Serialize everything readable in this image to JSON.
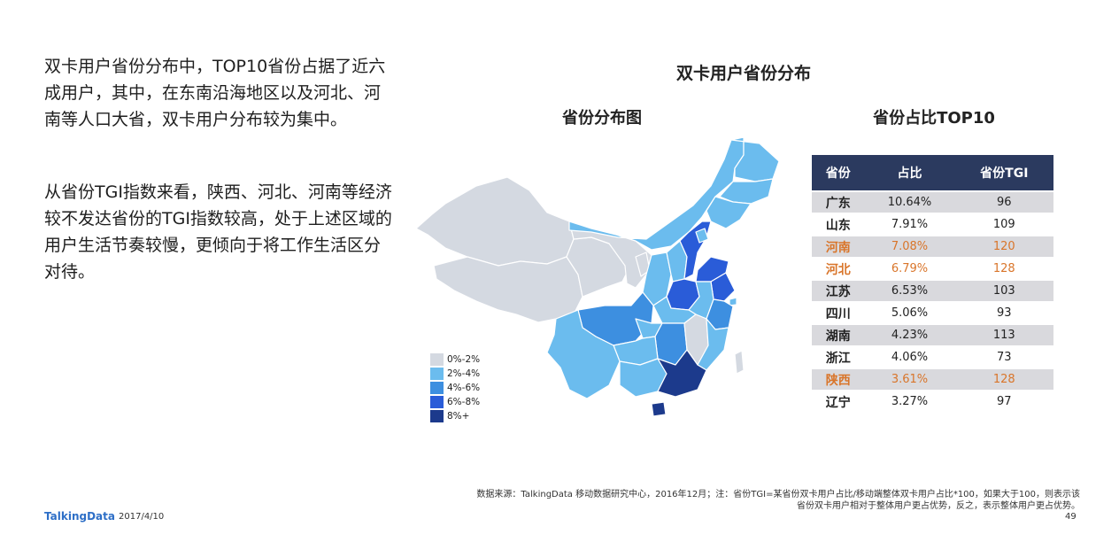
{
  "left_text": {
    "p1": "双卡用户省份分布中，TOP10省份占据了近六成用户，其中，在东南沿海地区以及河北、河南等人口大省，双卡用户分布较为集中。",
    "p2": "从省份TGI指数来看，陕西、河北、河南等经济较不发达省份的TGI指数较高，处于上述区域的用户生活节奏较慢，更倾向于将工作生活区分对待。"
  },
  "titles": {
    "main": "双卡用户省份分布",
    "map": "省份分布图",
    "top": "省份占比TOP10"
  },
  "legend": [
    {
      "label": "0%-2%",
      "color": "#d4d9e1"
    },
    {
      "label": "2%-4%",
      "color": "#6bbcee"
    },
    {
      "label": "4%-6%",
      "color": "#3d8fe0"
    },
    {
      "label": "6%-8%",
      "color": "#2a5cd8"
    },
    {
      "label": "8%+",
      "color": "#1c3a8c"
    }
  ],
  "table": {
    "headers": [
      "省份",
      "占比",
      "省份TGI"
    ],
    "rows": [
      {
        "province": "广东",
        "share": "10.64%",
        "tgi": "96",
        "shaded": true,
        "highlight": false
      },
      {
        "province": "山东",
        "share": "7.91%",
        "tgi": "109",
        "shaded": false,
        "highlight": false
      },
      {
        "province": "河南",
        "share": "7.08%",
        "tgi": "120",
        "shaded": true,
        "highlight": true
      },
      {
        "province": "河北",
        "share": "6.79%",
        "tgi": "128",
        "shaded": false,
        "highlight": true
      },
      {
        "province": "江苏",
        "share": "6.53%",
        "tgi": "103",
        "shaded": true,
        "highlight": false
      },
      {
        "province": "四川",
        "share": "5.06%",
        "tgi": "93",
        "shaded": false,
        "highlight": false
      },
      {
        "province": "湖南",
        "share": "4.23%",
        "tgi": "113",
        "shaded": true,
        "highlight": false
      },
      {
        "province": "浙江",
        "share": "4.06%",
        "tgi": "73",
        "shaded": false,
        "highlight": false
      },
      {
        "province": "陕西",
        "share": "3.61%",
        "tgi": "128",
        "shaded": true,
        "highlight": true
      },
      {
        "province": "辽宁",
        "share": "3.27%",
        "tgi": "97",
        "shaded": false,
        "highlight": false
      }
    ]
  },
  "colors": {
    "header_bg": "#2b3a5f",
    "highlight_text": "#d9752a",
    "row_shade": "#d9d9dd",
    "brand": "#2e6fc7"
  },
  "footer": {
    "note_line1": "数据来源：TalkingData 移动数据研究中心，2016年12月；注：省份TGI=某省份双卡用户占比/移动端整体双卡用户占比*100，如果大于100，则表示该",
    "note_line2": "省份双卡用户相对于整体用户更占优势，反之，表示整体用户更占优势。",
    "brand": "TalkingData",
    "date": "2017/4/10",
    "page": "49"
  }
}
